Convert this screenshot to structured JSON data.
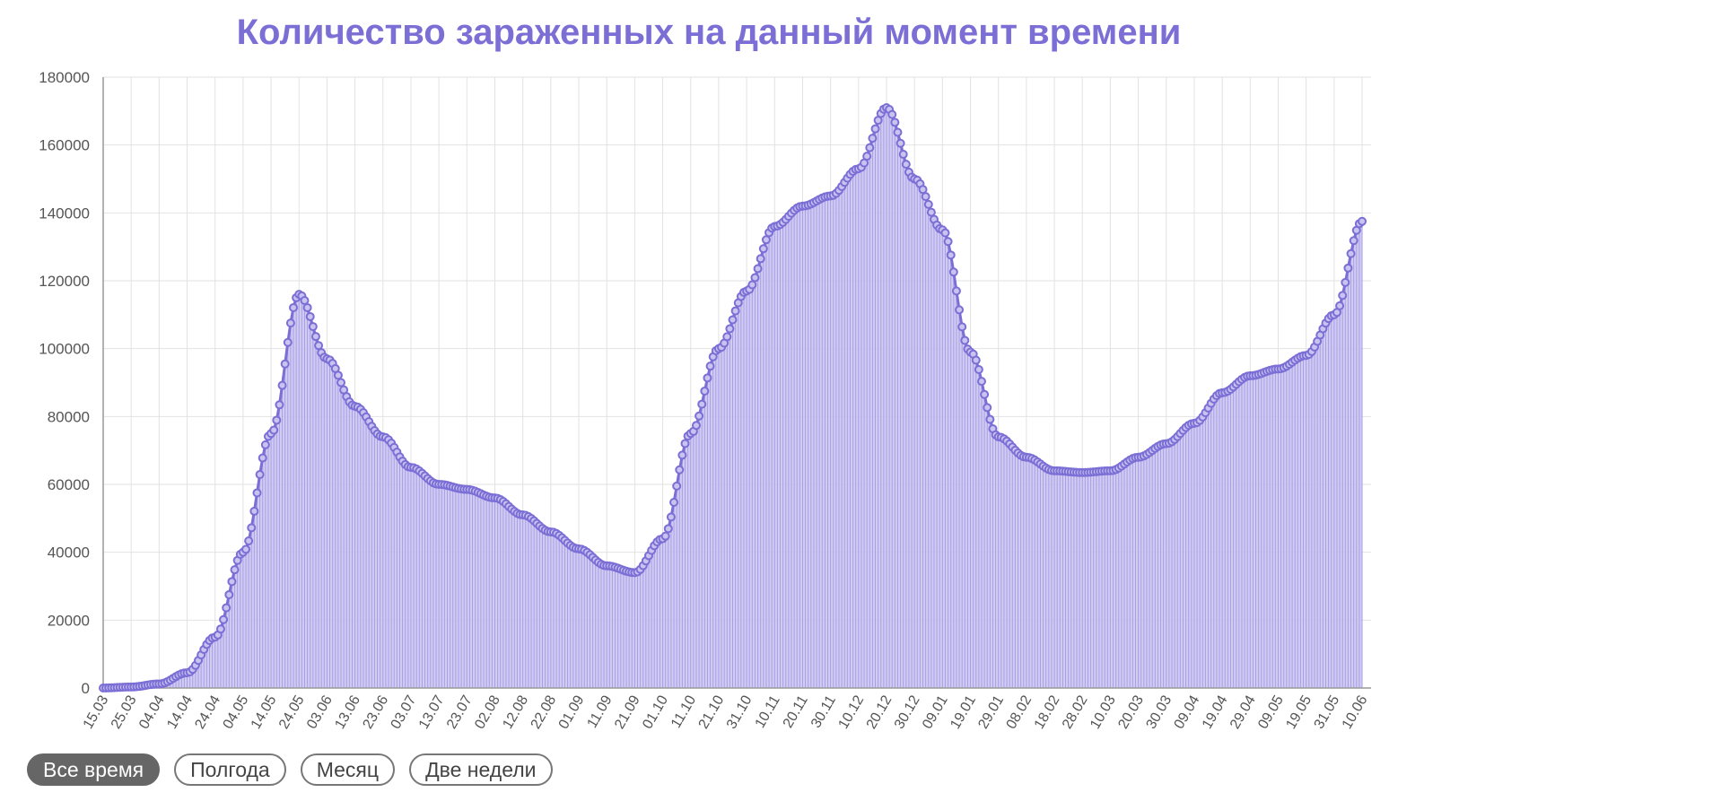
{
  "chart_data": {
    "type": "area",
    "title": "Количество зараженных на данный момент времени",
    "xlabel": "",
    "ylabel": "",
    "ylim": [
      0,
      180000
    ],
    "y_ticks": [
      "0",
      "20000",
      "40000",
      "60000",
      "80000",
      "100000",
      "120000",
      "140000",
      "160000",
      "180000"
    ],
    "x_tick_labels": [
      "15.03",
      "25.03",
      "04.04",
      "14.04",
      "24.04",
      "04.05",
      "14.05",
      "24.05",
      "03.06",
      "13.06",
      "23.06",
      "03.07",
      "13.07",
      "23.07",
      "02.08",
      "12.08",
      "22.08",
      "01.09",
      "11.09",
      "21.09",
      "01.10",
      "11.10",
      "21.10",
      "31.10",
      "10.11",
      "20.11",
      "30.11",
      "10.12",
      "20.12",
      "30.12",
      "09.01",
      "19.01",
      "29.01",
      "08.02",
      "18.02",
      "28.02",
      "10.03",
      "20.03",
      "30.03",
      "09.04",
      "19.04",
      "29.04",
      "09.05",
      "19.05",
      "31.05",
      "10.06"
    ],
    "grid": true,
    "legend": "none",
    "color": "#7b6fd6",
    "fill_color": "#c9c3f0",
    "series_anchor_values": [
      0,
      300,
      1200,
      4500,
      15000,
      40000,
      75000,
      116000,
      97000,
      83000,
      74000,
      65000,
      60000,
      58500,
      56000,
      51000,
      46000,
      41000,
      36000,
      34000,
      44000,
      75000,
      100000,
      117000,
      136000,
      142000,
      145000,
      153000,
      171000,
      150000,
      135000,
      99000,
      74000,
      68000,
      64000,
      63500,
      64000,
      68000,
      72000,
      78000,
      87000,
      92000,
      94000,
      98000,
      110000,
      137500
    ]
  },
  "buttons": {
    "all_time": "Все время",
    "half_year": "Полгода",
    "month": "Месяц",
    "two_weeks": "Две недели"
  }
}
